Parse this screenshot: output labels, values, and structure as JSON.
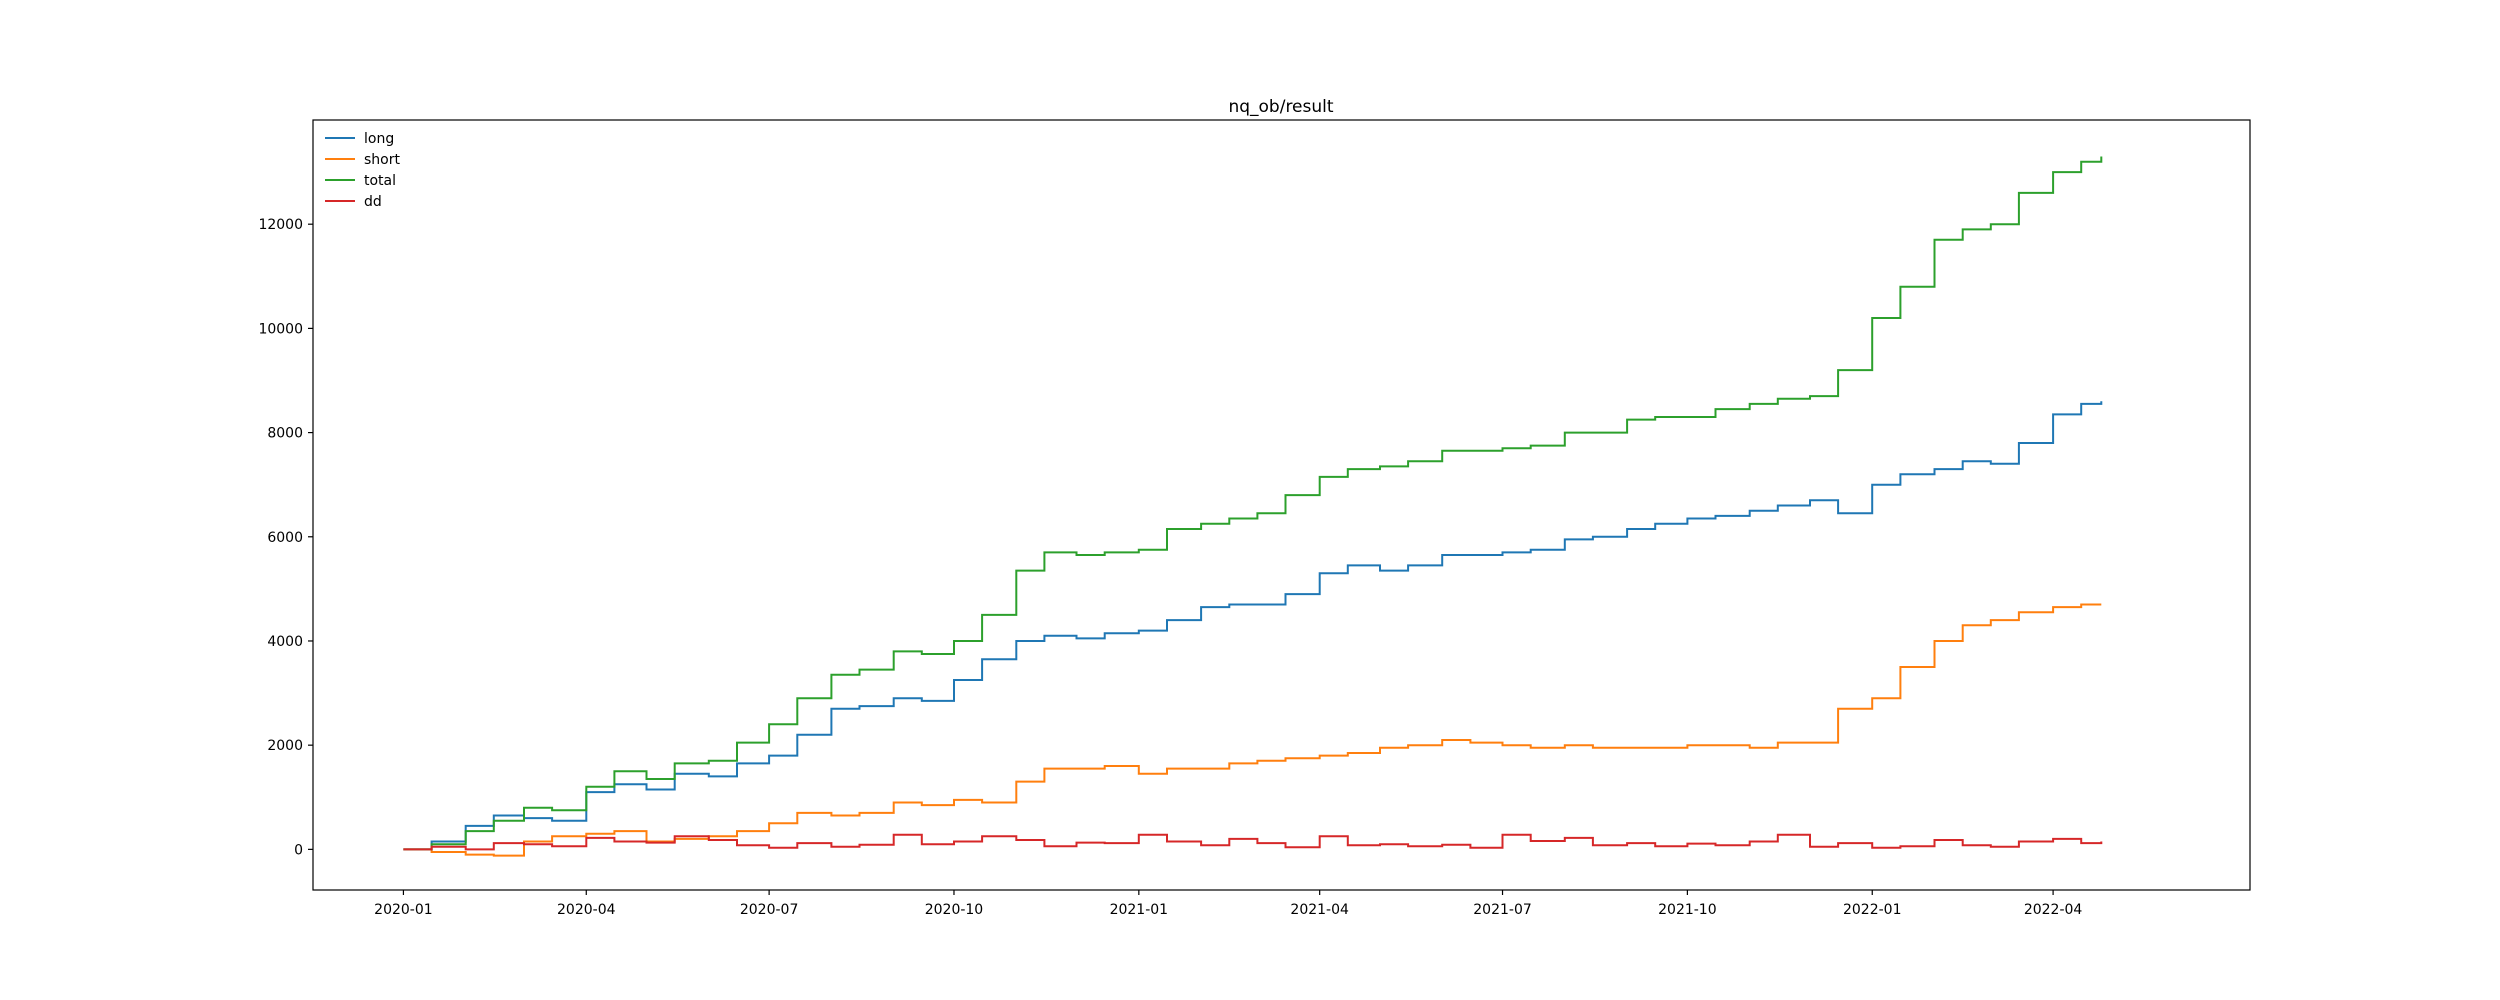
{
  "chart_data": {
    "type": "line",
    "title": "nq_ob/result",
    "xlabel": "",
    "ylabel": "",
    "x_ticks": [
      "2020-01",
      "2020-04",
      "2020-07",
      "2020-10",
      "2021-01",
      "2021-04",
      "2021-07",
      "2021-10",
      "2022-01",
      "2022-04"
    ],
    "y_ticks": [
      0,
      2000,
      4000,
      6000,
      8000,
      10000,
      12000
    ],
    "xlim": [
      "2019-11-17",
      "2022-07-08"
    ],
    "ylim": [
      -780,
      14000
    ],
    "grid": false,
    "legend_position": "top-left",
    "x": [
      "2020-01-01",
      "2020-01-15",
      "2020-02-01",
      "2020-02-15",
      "2020-03-01",
      "2020-03-15",
      "2020-04-01",
      "2020-04-15",
      "2020-05-01",
      "2020-05-15",
      "2020-06-01",
      "2020-06-15",
      "2020-07-01",
      "2020-07-15",
      "2020-08-01",
      "2020-08-15",
      "2020-09-01",
      "2020-09-15",
      "2020-10-01",
      "2020-10-15",
      "2020-11-01",
      "2020-11-15",
      "2020-12-01",
      "2020-12-15",
      "2021-01-01",
      "2021-01-15",
      "2021-02-01",
      "2021-02-15",
      "2021-03-01",
      "2021-03-15",
      "2021-04-01",
      "2021-04-15",
      "2021-05-01",
      "2021-05-15",
      "2021-06-01",
      "2021-06-15",
      "2021-07-01",
      "2021-07-15",
      "2021-08-01",
      "2021-08-15",
      "2021-09-01",
      "2021-09-15",
      "2021-10-01",
      "2021-10-15",
      "2021-11-01",
      "2021-11-15",
      "2021-12-01",
      "2021-12-15",
      "2022-01-01",
      "2022-01-15",
      "2022-02-01",
      "2022-02-15",
      "2022-03-01",
      "2022-03-15",
      "2022-04-01",
      "2022-04-15",
      "2022-04-25"
    ],
    "series": [
      {
        "name": "long",
        "color": "#1f77b4",
        "values": [
          0,
          150,
          450,
          650,
          600,
          550,
          1100,
          1250,
          1150,
          1450,
          1400,
          1650,
          1800,
          2200,
          2700,
          2750,
          2900,
          2850,
          3250,
          3650,
          4000,
          4100,
          4050,
          4150,
          4200,
          4400,
          4650,
          4700,
          4700,
          4900,
          5300,
          5450,
          5350,
          5450,
          5650,
          5650,
          5700,
          5750,
          5950,
          6000,
          6150,
          6250,
          6350,
          6400,
          6500,
          6600,
          6700,
          6450,
          7000,
          7200,
          7300,
          7450,
          7400,
          7800,
          8350,
          8550,
          8600
        ]
      },
      {
        "name": "short",
        "color": "#ff7f0e",
        "values": [
          0,
          -50,
          -100,
          -120,
          150,
          250,
          300,
          350,
          150,
          200,
          250,
          350,
          500,
          700,
          650,
          700,
          900,
          850,
          950,
          900,
          1300,
          1550,
          1550,
          1600,
          1450,
          1550,
          1550,
          1650,
          1700,
          1750,
          1800,
          1850,
          1950,
          2000,
          2100,
          2050,
          2000,
          1950,
          2000,
          1950,
          1950,
          1950,
          2000,
          2000,
          1950,
          2050,
          2050,
          2700,
          2900,
          3500,
          4000,
          4300,
          4400,
          4550,
          4650,
          4700,
          4700
        ]
      },
      {
        "name": "total",
        "color": "#2ca02c",
        "values": [
          0,
          100,
          350,
          550,
          800,
          750,
          1200,
          1500,
          1350,
          1650,
          1700,
          2050,
          2400,
          2900,
          3350,
          3450,
          3800,
          3750,
          4000,
          4500,
          5350,
          5700,
          5650,
          5700,
          5750,
          6150,
          6250,
          6350,
          6450,
          6800,
          7150,
          7300,
          7350,
          7450,
          7650,
          7650,
          7700,
          7750,
          8000,
          8000,
          8250,
          8300,
          8300,
          8450,
          8550,
          8650,
          8700,
          9200,
          10200,
          10800,
          11700,
          11900,
          12000,
          12600,
          13000,
          13200,
          13300
        ]
      },
      {
        "name": "dd",
        "color": "#d62728",
        "values": [
          0,
          50,
          0,
          120,
          100,
          60,
          220,
          150,
          130,
          250,
          180,
          80,
          30,
          120,
          50,
          90,
          280,
          100,
          150,
          250,
          180,
          60,
          130,
          120,
          280,
          150,
          80,
          200,
          120,
          40,
          250,
          80,
          100,
          60,
          90,
          30,
          280,
          160,
          220,
          80,
          120,
          60,
          110,
          80,
          150,
          280,
          50,
          120,
          30,
          60,
          180,
          80,
          50,
          150,
          200,
          120,
          150
        ]
      }
    ]
  }
}
